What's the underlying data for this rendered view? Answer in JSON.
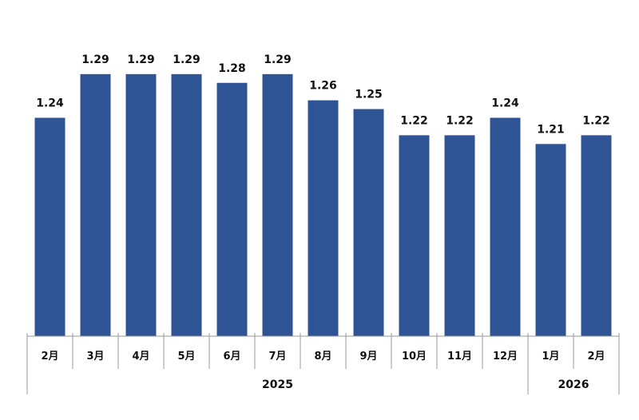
{
  "chart_data": {
    "type": "bar",
    "title": "",
    "xlabel": "",
    "ylabel": "",
    "categories": [
      "2月",
      "3月",
      "4月",
      "5月",
      "6月",
      "7月",
      "8月",
      "9月",
      "10月",
      "11月",
      "12月",
      "1月",
      "2月"
    ],
    "values": [
      1.24,
      1.29,
      1.29,
      1.29,
      1.28,
      1.29,
      1.26,
      1.25,
      1.22,
      1.22,
      1.24,
      1.21,
      1.22
    ],
    "value_labels": [
      "1.24",
      "1.29",
      "1.29",
      "1.29",
      "1.28",
      "1.29",
      "1.26",
      "1.25",
      "1.22",
      "1.22",
      "1.24",
      "1.21",
      "1.22"
    ],
    "year_groups": [
      {
        "label": "2025",
        "count": 11
      },
      {
        "label": "2026",
        "count": 2
      }
    ],
    "ylim": [
      0.99,
      1.32
    ],
    "grid": false,
    "legend": "none",
    "colors": {
      "bar": "#2F5496",
      "axis": "#999999",
      "text": "#111111"
    }
  }
}
